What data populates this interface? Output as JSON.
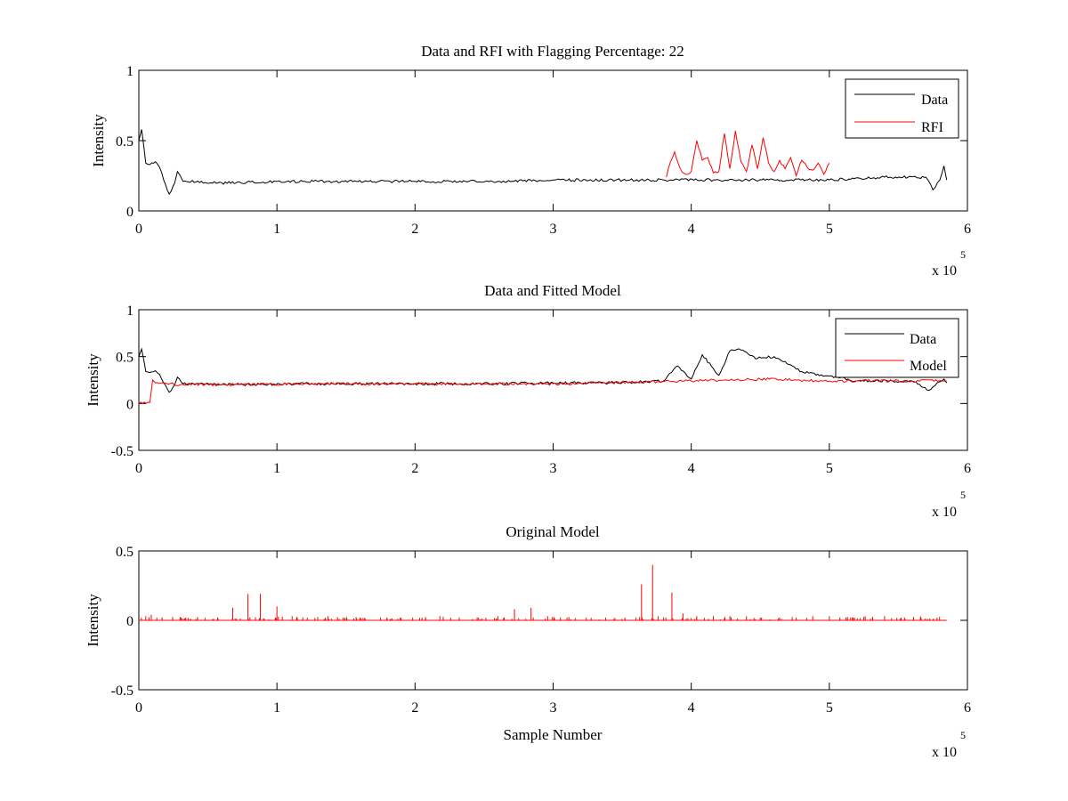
{
  "chart_data": [
    {
      "type": "line",
      "title": "Data and RFI with Flagging Percentage: 22",
      "xlabel": "",
      "ylabel": "Intensity",
      "xlim": [
        0,
        600000
      ],
      "ylim": [
        0,
        1
      ],
      "x_ticks": [
        "0",
        "1",
        "2",
        "3",
        "4",
        "5",
        "6"
      ],
      "y_ticks": [
        "0",
        "0.5",
        "1"
      ],
      "x_exponent": {
        "base": "x 10",
        "power": "5"
      },
      "grid": false,
      "legend": "top-right",
      "series": [
        {
          "name": "Data",
          "color": "#000000",
          "x": [
            0,
            2000,
            5000,
            8000,
            12000,
            15000,
            18000,
            22000,
            26000,
            28000,
            32000,
            60000,
            120000,
            200000,
            260000,
            300000,
            340000,
            380000,
            420000,
            460000,
            500000,
            540000,
            570000,
            575000,
            580000,
            583000,
            585000
          ],
          "y": [
            0.5,
            0.58,
            0.34,
            0.33,
            0.35,
            0.31,
            0.22,
            0.12,
            0.2,
            0.28,
            0.21,
            0.2,
            0.21,
            0.21,
            0.21,
            0.22,
            0.22,
            0.22,
            0.22,
            0.22,
            0.22,
            0.24,
            0.24,
            0.15,
            0.22,
            0.32,
            0.22
          ]
        },
        {
          "name": "RFI",
          "color": "#ff0000",
          "x": [
            382000,
            385000,
            388000,
            392000,
            396000,
            400000,
            404000,
            408000,
            412000,
            416000,
            420000,
            424000,
            428000,
            432000,
            436000,
            440000,
            444000,
            448000,
            452000,
            456000,
            460000,
            464000,
            468000,
            472000,
            476000,
            480000,
            484000,
            488000,
            492000,
            496000,
            500000
          ],
          "y": [
            0.24,
            0.35,
            0.42,
            0.3,
            0.26,
            0.28,
            0.5,
            0.36,
            0.38,
            0.27,
            0.28,
            0.55,
            0.3,
            0.57,
            0.35,
            0.28,
            0.47,
            0.3,
            0.52,
            0.34,
            0.28,
            0.36,
            0.3,
            0.38,
            0.25,
            0.36,
            0.31,
            0.29,
            0.34,
            0.26,
            0.34
          ]
        }
      ]
    },
    {
      "type": "line",
      "title": "Data and Fitted Model",
      "xlabel": "",
      "ylabel": "Intensity",
      "xlim": [
        0,
        600000
      ],
      "ylim": [
        -0.5,
        1
      ],
      "x_ticks": [
        "0",
        "1",
        "2",
        "3",
        "4",
        "5",
        "6"
      ],
      "y_ticks": [
        "-0.5",
        "0",
        "0.5",
        "1"
      ],
      "x_exponent": {
        "base": "x 10",
        "power": "5"
      },
      "grid": false,
      "legend": "top-right",
      "series": [
        {
          "name": "Data",
          "color": "#000000",
          "x": [
            0,
            2000,
            5000,
            8000,
            12000,
            15000,
            18000,
            22000,
            26000,
            28000,
            32000,
            60000,
            120000,
            200000,
            260000,
            300000,
            340000,
            380000,
            390000,
            400000,
            408000,
            420000,
            428000,
            436000,
            448000,
            460000,
            480000,
            520000,
            560000,
            572000,
            578000,
            583000,
            585000
          ],
          "y": [
            0.5,
            0.58,
            0.34,
            0.33,
            0.35,
            0.31,
            0.22,
            0.12,
            0.2,
            0.28,
            0.21,
            0.2,
            0.21,
            0.21,
            0.21,
            0.22,
            0.22,
            0.24,
            0.4,
            0.26,
            0.52,
            0.3,
            0.56,
            0.57,
            0.48,
            0.5,
            0.34,
            0.24,
            0.24,
            0.14,
            0.22,
            0.26,
            0.22
          ]
        },
        {
          "name": "Model",
          "color": "#ff0000",
          "x": [
            0,
            8000,
            10000,
            12000,
            16000,
            30000,
            60000,
            120000,
            200000,
            300000,
            400000,
            450000,
            500000,
            560000,
            585000
          ],
          "y": [
            0.0,
            0.01,
            0.25,
            0.22,
            0.22,
            0.2,
            0.2,
            0.21,
            0.21,
            0.21,
            0.24,
            0.26,
            0.24,
            0.24,
            0.24
          ]
        }
      ]
    },
    {
      "type": "line",
      "title": "Original Model",
      "xlabel": "Sample Number",
      "ylabel": "Intensity",
      "xlim": [
        0,
        600000
      ],
      "ylim": [
        -0.5,
        0.5
      ],
      "x_ticks": [
        "0",
        "1",
        "2",
        "3",
        "4",
        "5",
        "6"
      ],
      "y_ticks": [
        "-0.5",
        "0",
        "0.5"
      ],
      "x_exponent": {
        "base": "x 10",
        "power": "5"
      },
      "grid": false,
      "legend": "none",
      "series": [
        {
          "name": "",
          "color": "#ff0000",
          "baseline": 0.0,
          "xlim": [
            0,
            585000
          ],
          "spikes": [
            {
              "x": 5000,
              "y": 0.03
            },
            {
              "x": 9000,
              "y": 0.04
            },
            {
              "x": 13000,
              "y": 0.02
            },
            {
              "x": 34000,
              "y": 0.02
            },
            {
              "x": 57000,
              "y": 0.02
            },
            {
              "x": 68000,
              "y": 0.09
            },
            {
              "x": 79000,
              "y": 0.19
            },
            {
              "x": 88000,
              "y": 0.19
            },
            {
              "x": 100000,
              "y": 0.1
            },
            {
              "x": 111000,
              "y": 0.03
            },
            {
              "x": 122000,
              "y": 0.02
            },
            {
              "x": 137000,
              "y": 0.03
            },
            {
              "x": 148000,
              "y": 0.02
            },
            {
              "x": 160000,
              "y": 0.02
            },
            {
              "x": 175000,
              "y": 0.02
            },
            {
              "x": 190000,
              "y": 0.02
            },
            {
              "x": 205000,
              "y": 0.02
            },
            {
              "x": 218000,
              "y": 0.03
            },
            {
              "x": 232000,
              "y": 0.02
            },
            {
              "x": 246000,
              "y": 0.02
            },
            {
              "x": 260000,
              "y": 0.03
            },
            {
              "x": 272000,
              "y": 0.08
            },
            {
              "x": 284000,
              "y": 0.09
            },
            {
              "x": 296000,
              "y": 0.03
            },
            {
              "x": 310000,
              "y": 0.02
            },
            {
              "x": 324000,
              "y": 0.02
            },
            {
              "x": 338000,
              "y": 0.02
            },
            {
              "x": 352000,
              "y": 0.02
            },
            {
              "x": 360000,
              "y": 0.02
            },
            {
              "x": 364000,
              "y": 0.26
            },
            {
              "x": 372000,
              "y": 0.4
            },
            {
              "x": 376000,
              "y": 0.03
            },
            {
              "x": 386000,
              "y": 0.2
            },
            {
              "x": 394000,
              "y": 0.05
            },
            {
              "x": 404000,
              "y": 0.03
            },
            {
              "x": 416000,
              "y": 0.03
            },
            {
              "x": 428000,
              "y": 0.03
            },
            {
              "x": 440000,
              "y": 0.03
            },
            {
              "x": 450000,
              "y": 0.02
            },
            {
              "x": 464000,
              "y": 0.02
            },
            {
              "x": 476000,
              "y": 0.02
            },
            {
              "x": 488000,
              "y": 0.03
            },
            {
              "x": 500000,
              "y": 0.03
            },
            {
              "x": 512000,
              "y": 0.02
            },
            {
              "x": 526000,
              "y": 0.03
            },
            {
              "x": 540000,
              "y": 0.03
            },
            {
              "x": 552000,
              "y": 0.02
            },
            {
              "x": 566000,
              "y": 0.03
            },
            {
              "x": 578000,
              "y": 0.02
            }
          ]
        }
      ]
    }
  ]
}
